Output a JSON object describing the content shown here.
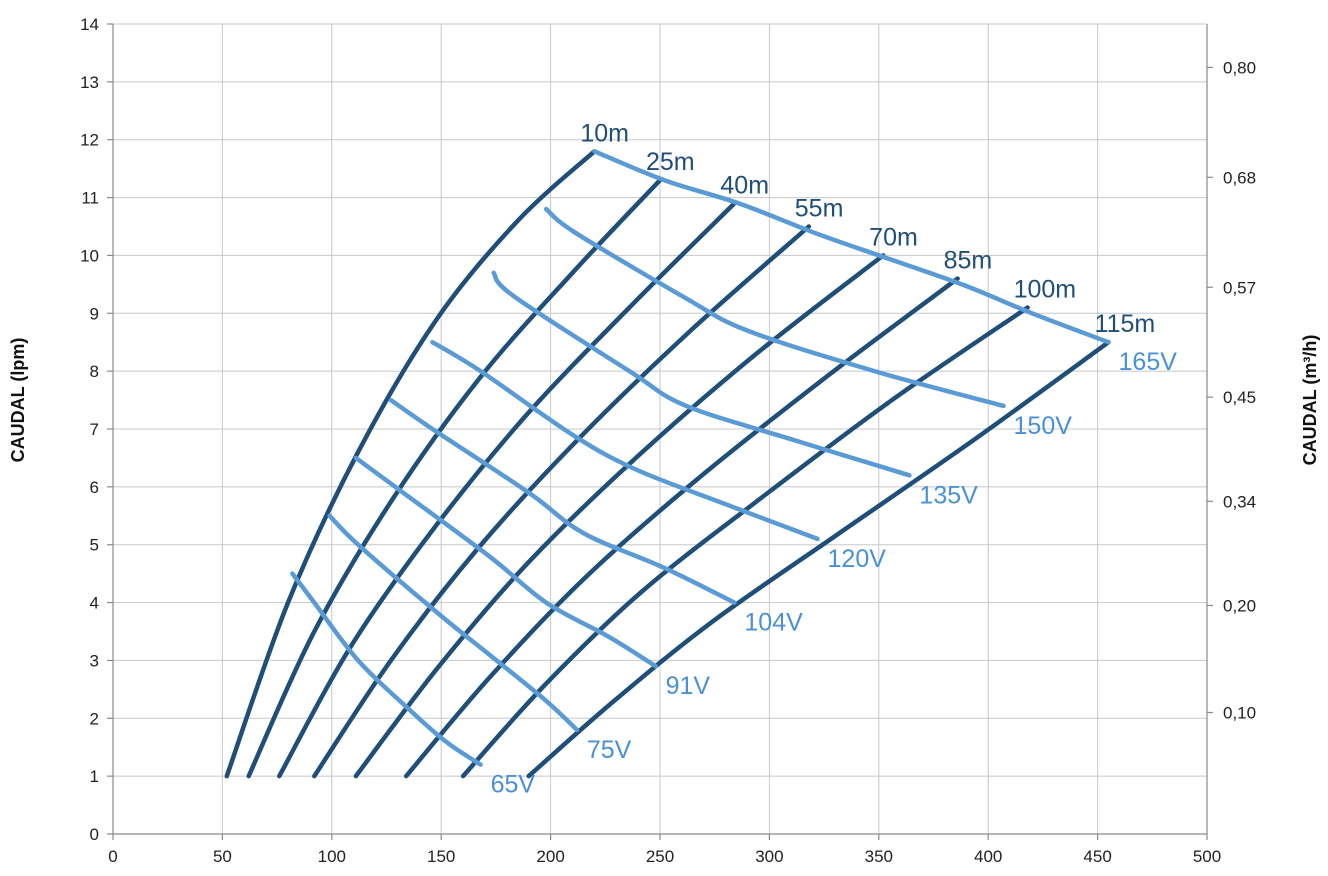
{
  "chart_data": {
    "type": "line",
    "title": "",
    "xlabel": "",
    "ylabel": "CAUDAL (lpm)",
    "y2label": "CAUDAL (m³/h)",
    "xlim": [
      0,
      500
    ],
    "ylim": [
      0,
      14
    ],
    "grid": true,
    "x_ticks": [
      "0",
      "50",
      "100",
      "150",
      "200",
      "250",
      "300",
      "350",
      "400",
      "450",
      "500"
    ],
    "y_ticks": [
      "0",
      "1",
      "2",
      "3",
      "4",
      "5",
      "6",
      "7",
      "8",
      "9",
      "10",
      "11",
      "12",
      "13",
      "14"
    ],
    "y2_ticks": [
      {
        "label": "0,10",
        "at": 2.1
      },
      {
        "label": "0,20",
        "at": 3.95
      },
      {
        "label": "0,34",
        "at": 5.75
      },
      {
        "label": "0,45",
        "at": 7.55
      },
      {
        "label": "0,57",
        "at": 9.45
      },
      {
        "label": "0,68",
        "at": 11.35
      },
      {
        "label": "0,80",
        "at": 13.25
      }
    ],
    "colors": {
      "head_curves": "#1f4e79",
      "voltage_curves": "#5b9bd5",
      "voltage_labels": "#4a90d9",
      "head_labels": "#1f4e79"
    },
    "head_series": [
      {
        "name": "10m",
        "x": [
          52,
          80,
          112,
          148,
          185,
          220
        ],
        "y": [
          1,
          4,
          6.6,
          8.9,
          10.6,
          11.8
        ]
      },
      {
        "name": "25m",
        "x": [
          62,
          92,
          128,
          168,
          210,
          250
        ],
        "y": [
          1,
          3.5,
          5.8,
          7.9,
          9.7,
          11.3
        ]
      },
      {
        "name": "40m",
        "x": [
          76,
          108,
          145,
          188,
          236,
          284
        ],
        "y": [
          1,
          3.2,
          5.2,
          7.2,
          9.1,
          10.9
        ]
      },
      {
        "name": "55m",
        "x": [
          92,
          127,
          166,
          212,
          264,
          318
        ],
        "y": [
          1,
          3.0,
          4.9,
          6.8,
          8.7,
          10.5
        ]
      },
      {
        "name": "70m",
        "x": [
          111,
          149,
          190,
          239,
          294,
          352
        ],
        "y": [
          1,
          2.9,
          4.7,
          6.5,
          8.3,
          10.0
        ]
      },
      {
        "name": "85m",
        "x": [
          134,
          172,
          215,
          266,
          326,
          386
        ],
        "y": [
          1,
          2.7,
          4.4,
          6.1,
          7.9,
          9.6
        ]
      },
      {
        "name": "100m",
        "x": [
          160,
          198,
          242,
          296,
          356,
          418
        ],
        "y": [
          1,
          2.6,
          4.2,
          5.8,
          7.5,
          9.1
        ]
      },
      {
        "name": "115m",
        "x": [
          190,
          229,
          275,
          332,
          393,
          455
        ],
        "y": [
          1,
          2.3,
          3.7,
          5.2,
          6.8,
          8.5
        ]
      }
    ],
    "voltage_series": [
      {
        "name": "65V",
        "x": [
          82,
          92,
          112,
          134,
          152,
          168
        ],
        "y": [
          4.5,
          4.0,
          3.0,
          2.2,
          1.6,
          1.2
        ]
      },
      {
        "name": "75V",
        "x": [
          99,
          112,
          149,
          172,
          198,
          212
        ],
        "y": [
          5.5,
          5.0,
          3.8,
          3.1,
          2.3,
          1.8
        ]
      },
      {
        "name": "91V",
        "x": [
          111,
          129,
          172,
          198,
          227,
          248
        ],
        "y": [
          6.5,
          6.0,
          4.8,
          4.0,
          3.4,
          2.9
        ]
      },
      {
        "name": "104V",
        "x": [
          127,
          146,
          190,
          215,
          252,
          284
        ],
        "y": [
          7.5,
          7.0,
          5.9,
          5.2,
          4.6,
          4.0
        ]
      },
      {
        "name": "120V",
        "x": [
          146,
          168,
          210,
          239,
          280,
          322
        ],
        "y": [
          8.5,
          8.0,
          6.9,
          6.3,
          5.7,
          5.1
        ]
      },
      {
        "name": "135V",
        "x": [
          174,
          183,
          236,
          262,
          312,
          364
        ],
        "y": [
          9.7,
          9.3,
          8.0,
          7.4,
          6.8,
          6.2
        ]
      },
      {
        "name": "150V",
        "x": [
          198,
          211,
          260,
          290,
          348,
          407
        ],
        "y": [
          10.8,
          10.4,
          9.3,
          8.7,
          8.0,
          7.4
        ]
      },
      {
        "name": "165V",
        "x": [
          220,
          252,
          286,
          320,
          350,
          388,
          420,
          455
        ],
        "y": [
          11.8,
          11.3,
          10.9,
          10.4,
          10.0,
          9.5,
          9.0,
          8.5
        ]
      }
    ]
  }
}
